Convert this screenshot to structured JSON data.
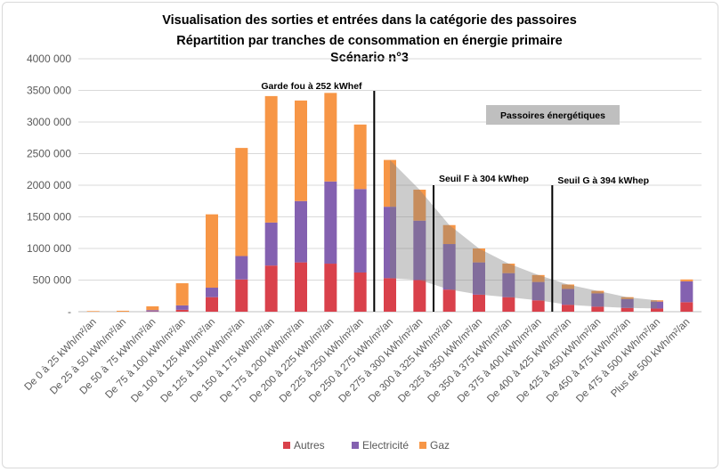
{
  "chart_data": {
    "type": "bar",
    "stacked": true,
    "title_lines": [
      "Visualisation des sorties et entrées dans la catégorie des passoires",
      "Répartition par tranches de consommation en énergie primaire",
      "Scénario n°3"
    ],
    "ylim": [
      0,
      4000000
    ],
    "yticks": [
      "-",
      "500 000",
      "1000 000",
      "1500 000",
      "2000 000",
      "2500 000",
      "3000 000",
      "3500 000",
      "4000 000"
    ],
    "grid": true,
    "legend_position": "bottom",
    "categories": [
      "De 0 à 25 kWh/m²/an",
      "De 25 à 50 kWh/m²/an",
      "De 50 à 75 kWh/m²/an",
      "De 75 à 100 kWh/m²/an",
      "De 100 à 125 kWh/m²/an",
      "De 125 à 150 kWh/m²/an",
      "De 150 à 175 kWh/m²/an",
      "De 175 à 200 kWh/m²/an",
      "De 200 à 225 kWh/m²/an",
      "De 225 à 250 kWh/m²/an",
      "De 250 à 275 kWh/m²/an",
      "De 275 à 300 kWh/m²/an",
      "De 300 à 325 kWh/m²/an",
      "De 325 à 350 kWh/m²/an",
      "De 350 à 375 kWh/m²/an",
      "De 375 à 400 kWh/m²/an",
      "De 400 à 425 kWh/m²/an",
      "De 425 à 450 kWh/m²/an",
      "De 450 à 475 kWh/m²/an",
      "De 475 à 500 kWh/m²/an",
      "Plus de 500 kWh/m²/an"
    ],
    "series": [
      {
        "name": "Autres",
        "color": "#d9414b",
        "values": [
          0,
          0,
          5000,
          30000,
          230000,
          510000,
          730000,
          780000,
          760000,
          620000,
          530000,
          500000,
          350000,
          270000,
          230000,
          180000,
          110000,
          80000,
          60000,
          50000,
          150000
        ]
      },
      {
        "name": "Electricité",
        "color": "#8461b0",
        "values": [
          0,
          0,
          20000,
          70000,
          150000,
          370000,
          680000,
          970000,
          1300000,
          1320000,
          1130000,
          940000,
          720000,
          510000,
          380000,
          290000,
          250000,
          210000,
          140000,
          110000,
          330000
        ]
      },
      {
        "name": "Gaz",
        "color": "#f79646",
        "values": [
          10000,
          15000,
          60000,
          350000,
          1160000,
          1710000,
          2000000,
          1590000,
          1400000,
          1020000,
          740000,
          490000,
          300000,
          220000,
          150000,
          110000,
          70000,
          40000,
          30000,
          20000,
          30000
        ]
      }
    ],
    "shaded_from_index": 10,
    "shaded_label": "Passoires énergétiques",
    "annotations": [
      {
        "label": "Garde fou à 252 kWhef",
        "at_index": 10
      },
      {
        "label": "Seuil F à 304 kWhep",
        "at_index": 12
      },
      {
        "label": "Seuil G à 394 kWhep",
        "at_index": 16
      }
    ]
  }
}
